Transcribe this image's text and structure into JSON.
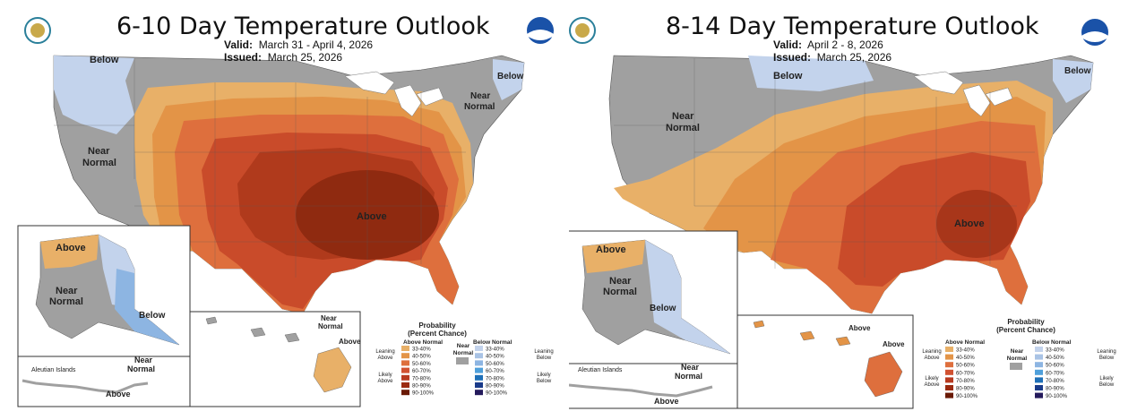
{
  "maps": [
    {
      "title": "6-10 Day Temperature Outlook",
      "valid_label": "Valid:",
      "valid_value": "March 31 - April 4, 2026",
      "issued_label": "Issued:",
      "issued_value": "March 25, 2026",
      "labels": {
        "below_nw": "Below",
        "near_normal_west_1": "Near",
        "near_normal_west_2": "Normal",
        "near_normal_ne_1": "Near",
        "near_normal_ne_2": "Normal",
        "below_ne": "Below",
        "above_main": "Above",
        "ak_above": "Above",
        "ak_near_1": "Near",
        "ak_near_2": "Normal",
        "ak_below": "Below",
        "aleutian": "Aleutian Islands",
        "aleutian_near_1": "Near",
        "aleutian_near_2": "Normal",
        "aleutian_above": "Above",
        "hi_near_1": "Near",
        "hi_near_2": "Normal",
        "hi_above": "Above"
      }
    },
    {
      "title": "8-14 Day Temperature Outlook",
      "valid_label": "Valid:",
      "valid_value": "April 2 - 8, 2026",
      "issued_label": "Issued:",
      "issued_value": "March 25, 2026",
      "labels": {
        "below_north": "Below",
        "near_normal_west_1": "Near",
        "near_normal_west_2": "Normal",
        "below_ne": "Below",
        "above_main": "Above",
        "ak_above": "Above",
        "ak_near_1": "Near",
        "ak_near_2": "Normal",
        "ak_below": "Below",
        "aleutian": "Aleutian Islands",
        "aleutian_near_1": "Near",
        "aleutian_near_2": "Normal",
        "aleutian_above": "Above",
        "hi_above_1": "Above",
        "hi_above_2": "Above"
      }
    }
  ],
  "legend": {
    "title_1": "Probability",
    "title_2": "(Percent Chance)",
    "above_header": "Above Normal",
    "below_header": "Below Normal",
    "near_1": "Near",
    "near_2": "Normal",
    "leaning_above_1": "Leaning",
    "leaning_above_2": "Above",
    "likely_above_1": "Likely",
    "likely_above_2": "Above",
    "leaning_below_1": "Leaning",
    "leaning_below_2": "Below",
    "likely_below_1": "Likely",
    "likely_below_2": "Below",
    "ranges": [
      "33-40%",
      "40-50%",
      "50-60%",
      "60-70%",
      "70-80%",
      "80-90%",
      "90-100%"
    ],
    "above_colors": [
      "#e8b068",
      "#e39447",
      "#de6f3d",
      "#d15131",
      "#b83a20",
      "#9b2a10",
      "#6a1a06"
    ],
    "below_colors": [
      "#c3d3ec",
      "#a9c3e5",
      "#8db5e2",
      "#4fa0db",
      "#1f70b8",
      "#1a3b8a",
      "#241a5c"
    ],
    "near_color": "#a0a0a0"
  }
}
